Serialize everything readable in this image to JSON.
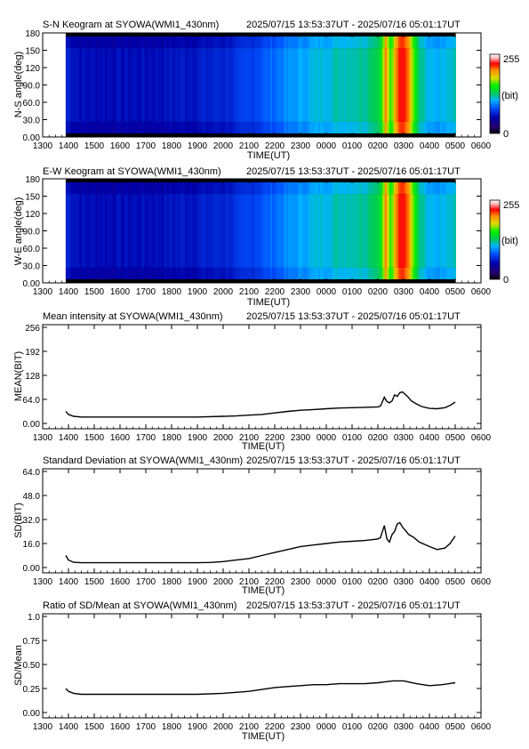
{
  "x_ticks": [
    "1300",
    "1400",
    "1500",
    "1600",
    "1700",
    "1800",
    "1900",
    "2000",
    "2100",
    "2200",
    "2300",
    "0000",
    "0100",
    "0200",
    "0300",
    "0400",
    "0500",
    "0600"
  ],
  "time_range": "2025/07/15 13:53:37UT - 2025/07/16 05:01:17UT",
  "colorbar": {
    "max_label": "255",
    "unit_label": "(bit)",
    "min_label": "0"
  },
  "chart_data": [
    {
      "type": "heatmap",
      "title": "S-N Keogram at SYOWA(WMI1_430nm)",
      "xlabel": "TIME(UT)",
      "ylabel": "N-S angle(deg)",
      "x_range_hours": [
        13,
        30
      ],
      "data_span_hours": [
        13.894,
        29.021
      ],
      "ylim": [
        0,
        180
      ],
      "yticks": [
        "0.00",
        "30.0",
        "60.0",
        "90.0",
        "120",
        "150",
        "180"
      ],
      "colorbar_range": [
        0,
        255
      ],
      "colormap": [
        "#000000",
        "#28006e",
        "#0000aa",
        "#0050ff",
        "#00b4ff",
        "#00c864",
        "#00f000",
        "#dcdc00",
        "#ff8c00",
        "#ff0000",
        "#ffb4b4",
        "#ffffff"
      ],
      "brightness_profile": [
        [
          13.9,
          0.26
        ],
        [
          14.5,
          0.22
        ],
        [
          15.5,
          0.22
        ],
        [
          17,
          0.22
        ],
        [
          19,
          0.24
        ],
        [
          20.5,
          0.27
        ],
        [
          21.5,
          0.32
        ],
        [
          22.5,
          0.38
        ],
        [
          23.5,
          0.43
        ],
        [
          24.5,
          0.46
        ],
        [
          25.5,
          0.48
        ],
        [
          26.1,
          0.55
        ],
        [
          26.3,
          0.8
        ],
        [
          26.5,
          0.6
        ],
        [
          26.7,
          0.78
        ],
        [
          26.9,
          0.9
        ],
        [
          27.1,
          0.86
        ],
        [
          27.3,
          0.72
        ],
        [
          27.6,
          0.5
        ],
        [
          28.0,
          0.42
        ],
        [
          28.5,
          0.42
        ],
        [
          29.0,
          0.45
        ]
      ]
    },
    {
      "type": "heatmap",
      "title": "E-W Keogram at SYOWA(WMI1_430nm)",
      "xlabel": "TIME(UT)",
      "ylabel": "W-E angle(deg)",
      "x_range_hours": [
        13,
        30
      ],
      "data_span_hours": [
        13.894,
        29.021
      ],
      "ylim": [
        0,
        180
      ],
      "yticks": [
        "0.00",
        "30.0",
        "60.0",
        "90.0",
        "120",
        "150",
        "180"
      ],
      "colorbar_range": [
        0,
        255
      ],
      "brightness_profile": [
        [
          13.9,
          0.26
        ],
        [
          14.5,
          0.22
        ],
        [
          15.5,
          0.22
        ],
        [
          17,
          0.22
        ],
        [
          19,
          0.24
        ],
        [
          20.5,
          0.27
        ],
        [
          21.5,
          0.32
        ],
        [
          22.5,
          0.38
        ],
        [
          23.5,
          0.43
        ],
        [
          24.5,
          0.46
        ],
        [
          25.5,
          0.48
        ],
        [
          26.1,
          0.55
        ],
        [
          26.3,
          0.8
        ],
        [
          26.5,
          0.6
        ],
        [
          26.7,
          0.78
        ],
        [
          26.9,
          0.9
        ],
        [
          27.1,
          0.86
        ],
        [
          27.3,
          0.72
        ],
        [
          27.6,
          0.5
        ],
        [
          28.0,
          0.42
        ],
        [
          28.5,
          0.42
        ],
        [
          29.0,
          0.45
        ]
      ]
    },
    {
      "type": "line",
      "title": "Mean intensity at SYOWA(WMI1_430nm)",
      "xlabel": "TIME(UT)",
      "ylabel": "MEAN(BIT)",
      "x_range_hours": [
        13,
        30
      ],
      "ylim": [
        0,
        256
      ],
      "yticks": [
        "0.00",
        "64.0",
        "128",
        "192",
        "256"
      ],
      "ytick_values": [
        0,
        64,
        128,
        192,
        256
      ],
      "series": [
        {
          "x": [
            13.9,
            14.0,
            14.2,
            14.5,
            15,
            16,
            17,
            18,
            19,
            20,
            20.5,
            21,
            21.5,
            22,
            22.5,
            23,
            23.5,
            24,
            24.5,
            25,
            25.5,
            26,
            26.1,
            26.25,
            26.35,
            26.45,
            26.55,
            26.65,
            26.75,
            26.85,
            26.95,
            27.05,
            27.15,
            27.3,
            27.5,
            27.7,
            28,
            28.3,
            28.6,
            28.8,
            29.0
          ],
          "y": [
            32,
            24,
            19,
            17,
            17,
            17,
            17,
            17,
            17,
            19,
            20,
            22,
            24,
            28,
            32,
            35,
            37,
            39,
            41,
            42,
            43,
            44,
            46,
            70,
            58,
            55,
            60,
            76,
            72,
            82,
            84,
            78,
            72,
            60,
            52,
            45,
            40,
            39,
            42,
            48,
            57
          ]
        }
      ]
    },
    {
      "type": "line",
      "title": "Standard Deviation at SYOWA(WMI1_430nm)",
      "xlabel": "TIME(UT)",
      "ylabel": "SD(BIT)",
      "x_range_hours": [
        13,
        30
      ],
      "ylim": [
        0,
        64
      ],
      "yticks": [
        "0.00",
        "16.0",
        "32.0",
        "48.0",
        "64.0"
      ],
      "ytick_values": [
        0,
        16,
        32,
        48,
        64
      ],
      "series": [
        {
          "x": [
            13.9,
            14.0,
            14.2,
            14.5,
            15,
            16,
            17,
            18,
            19,
            19.5,
            20,
            20.5,
            21,
            21.5,
            22,
            22.5,
            23,
            23.5,
            24,
            24.5,
            25,
            25.5,
            26,
            26.1,
            26.25,
            26.35,
            26.45,
            26.55,
            26.65,
            26.75,
            26.85,
            26.95,
            27.05,
            27.2,
            27.4,
            27.6,
            28,
            28.3,
            28.6,
            28.8,
            29.0
          ],
          "y": [
            8,
            5,
            3.5,
            3.2,
            3.2,
            3.2,
            3.2,
            3.2,
            3.2,
            3.4,
            4,
            5,
            6,
            8,
            10,
            12,
            14,
            15,
            16,
            17,
            17.5,
            18,
            19,
            20,
            28,
            19,
            17,
            22,
            24,
            29,
            30,
            27,
            25,
            22,
            20,
            17,
            14,
            12,
            13,
            16,
            21
          ]
        }
      ]
    },
    {
      "type": "line",
      "title": "Ratio of SD/Mean at SYOWA(WMI1_430nm)",
      "xlabel": "TIME(UT)",
      "ylabel": "SD/Mean",
      "x_range_hours": [
        13,
        30
      ],
      "ylim": [
        0,
        1
      ],
      "yticks": [
        "0.00",
        "0.25",
        "0.50",
        "0.75",
        "1.0"
      ],
      "ytick_values": [
        0,
        0.25,
        0.5,
        0.75,
        1.0
      ],
      "series": [
        {
          "x": [
            13.9,
            14.0,
            14.2,
            14.5,
            15,
            16,
            17,
            18,
            19,
            20,
            20.5,
            21,
            21.5,
            22,
            22.5,
            23,
            23.5,
            24,
            24.5,
            25,
            25.5,
            26,
            26.3,
            26.6,
            27,
            27.5,
            28,
            28.5,
            29.0
          ],
          "y": [
            0.25,
            0.22,
            0.2,
            0.19,
            0.19,
            0.19,
            0.19,
            0.19,
            0.19,
            0.2,
            0.21,
            0.22,
            0.24,
            0.26,
            0.27,
            0.28,
            0.29,
            0.29,
            0.3,
            0.3,
            0.3,
            0.31,
            0.32,
            0.33,
            0.33,
            0.3,
            0.28,
            0.29,
            0.31
          ]
        }
      ]
    }
  ]
}
